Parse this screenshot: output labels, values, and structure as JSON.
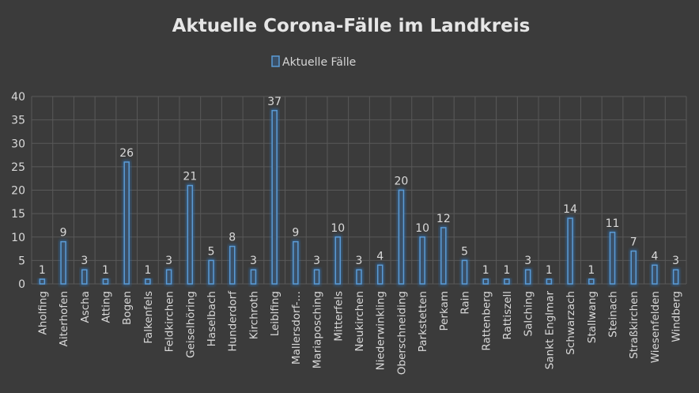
{
  "chart_data": {
    "type": "bar",
    "title": "Aktuelle Corona-Fälle im Landkreis",
    "xlabel": "",
    "ylabel": "",
    "ylim": [
      0,
      40
    ],
    "yticks": [
      "0",
      "5",
      "10",
      "15",
      "20",
      "25",
      "30",
      "35",
      "40"
    ],
    "grid": true,
    "legend_position": "top",
    "categories": [
      "Aholfing",
      "Aiterhofen",
      "Ascha",
      "Atting",
      "Bogen",
      "Falkenfels",
      "Feldkirchen",
      "Geiselhöring",
      "Haselbach",
      "Hunderdorf",
      "Kirchroth",
      "Leiblfing",
      "Mallersdorf-…",
      "Mariaposching",
      "Mitterfels",
      "Neukirchen",
      "Niederwinkling",
      "Oberschneiding",
      "Parkstetten",
      "Perkam",
      "Rain",
      "Rattenberg",
      "Rattiszell",
      "Salching",
      "Sankt Englmar",
      "Schwarzach",
      "Stallwang",
      "Steinach",
      "Straßkirchen",
      "Wiesenfelden",
      "Windberg"
    ],
    "series": [
      {
        "name": "Aktuelle Fälle",
        "values": [
          1,
          9,
          3,
          1,
          26,
          1,
          3,
          21,
          5,
          8,
          3,
          37,
          9,
          3,
          10,
          3,
          4,
          20,
          10,
          12,
          5,
          1,
          1,
          3,
          1,
          14,
          1,
          11,
          7,
          4,
          3
        ]
      }
    ],
    "colors": {
      "bar_fill": "#3a4f66",
      "bar_stroke": "#5b9bd5",
      "bar_glow": "#2d6fb0",
      "background": "#3b3b3b",
      "grid": "#595959",
      "text": "#d9d9d9"
    }
  }
}
